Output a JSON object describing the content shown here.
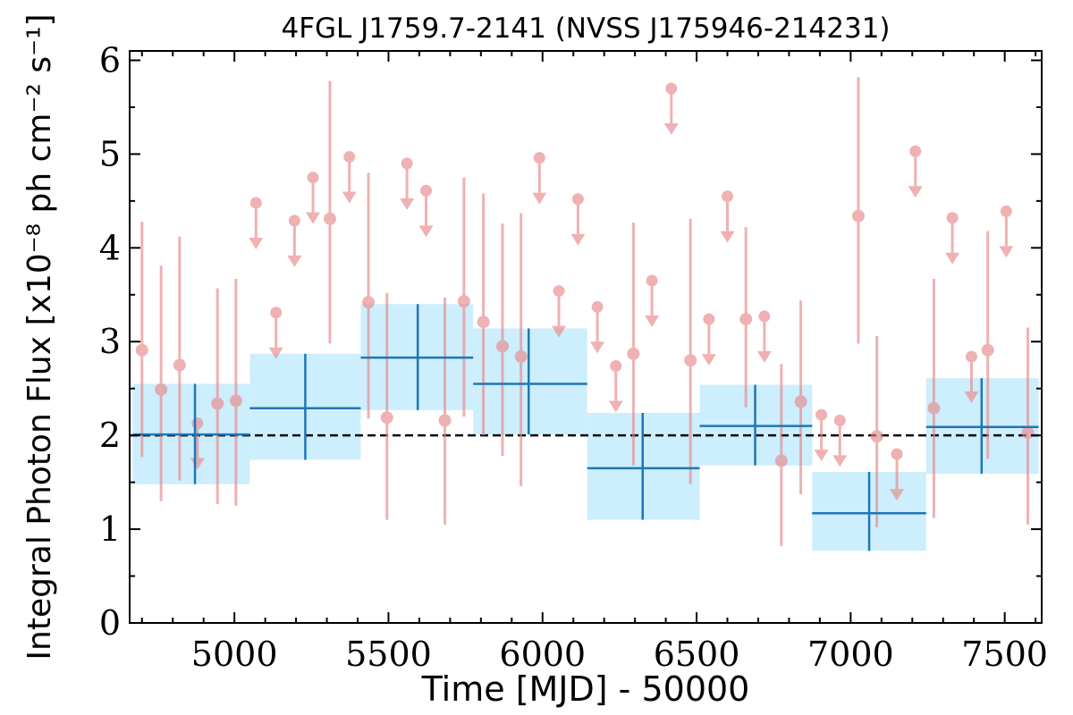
{
  "chart_data": {
    "type": "scatter",
    "title": "4FGL J1759.7-2141 (NVSS J175946-214231)",
    "xlabel": "Time [MJD] - 50000",
    "ylabel": "Integral Photon Flux [x10⁻⁸ ph cm⁻² s⁻¹]",
    "xlim": [
      4660,
      7620
    ],
    "ylim": [
      0,
      6.1
    ],
    "xticks": [
      5000,
      5500,
      6000,
      6500,
      7000,
      7500
    ],
    "yticks": [
      0,
      1,
      2,
      3,
      4,
      5,
      6
    ],
    "grid": false,
    "reference_line": {
      "y": 2.0,
      "style": "dashed",
      "color": "#000000"
    },
    "colors": {
      "short_bin": "#e8888a",
      "long_bin_line": "#1f77b4",
      "long_bin_band": "#cdeefc"
    },
    "short_bins": {
      "name": "",
      "detections": [
        {
          "x": 4700,
          "y": 2.91,
          "ylow": 1.77,
          "yhigh": 4.28
        },
        {
          "x": 4762,
          "y": 2.49,
          "ylow": 1.3,
          "yhigh": 3.81
        },
        {
          "x": 4822,
          "y": 2.75,
          "ylow": 1.52,
          "yhigh": 4.12
        },
        {
          "x": 4945,
          "y": 2.34,
          "ylow": 1.27,
          "yhigh": 3.57
        },
        {
          "x": 5005,
          "y": 2.37,
          "ylow": 1.25,
          "yhigh": 3.67
        },
        {
          "x": 5310,
          "y": 4.31,
          "ylow": 2.98,
          "yhigh": 5.78
        },
        {
          "x": 5435,
          "y": 3.42,
          "ylow": 2.18,
          "yhigh": 4.8
        },
        {
          "x": 5495,
          "y": 2.19,
          "ylow": 1.1,
          "yhigh": 3.52
        },
        {
          "x": 5683,
          "y": 2.16,
          "ylow": 1.05,
          "yhigh": 3.47
        },
        {
          "x": 5745,
          "y": 3.43,
          "ylow": 2.2,
          "yhigh": 4.75
        },
        {
          "x": 5808,
          "y": 3.21,
          "ylow": 2.0,
          "yhigh": 4.58
        },
        {
          "x": 5870,
          "y": 2.95,
          "ylow": 1.78,
          "yhigh": 4.26
        },
        {
          "x": 5930,
          "y": 2.84,
          "ylow": 1.46,
          "yhigh": 4.37
        },
        {
          "x": 6295,
          "y": 2.87,
          "ylow": 1.68,
          "yhigh": 4.27
        },
        {
          "x": 6480,
          "y": 2.8,
          "ylow": 1.48,
          "yhigh": 4.31
        },
        {
          "x": 6660,
          "y": 3.24,
          "ylow": 2.3,
          "yhigh": 4.22
        },
        {
          "x": 6775,
          "y": 1.73,
          "ylow": 0.82,
          "yhigh": 2.76
        },
        {
          "x": 6838,
          "y": 2.36,
          "ylow": 1.37,
          "yhigh": 3.44
        },
        {
          "x": 7025,
          "y": 4.34,
          "ylow": 2.98,
          "yhigh": 5.82
        },
        {
          "x": 7085,
          "y": 1.99,
          "ylow": 1.02,
          "yhigh": 3.06
        },
        {
          "x": 7270,
          "y": 2.29,
          "ylow": 1.12,
          "yhigh": 3.67
        },
        {
          "x": 7445,
          "y": 2.91,
          "ylow": 1.75,
          "yhigh": 4.18
        },
        {
          "x": 7575,
          "y": 2.03,
          "ylow": 1.05,
          "yhigh": 3.15
        }
      ],
      "upper_limits": [
        {
          "x": 4880,
          "y": 2.13
        },
        {
          "x": 5070,
          "y": 4.48
        },
        {
          "x": 5135,
          "y": 3.31
        },
        {
          "x": 5195,
          "y": 4.29
        },
        {
          "x": 5255,
          "y": 4.75
        },
        {
          "x": 5373,
          "y": 4.97
        },
        {
          "x": 5560,
          "y": 4.9
        },
        {
          "x": 5622,
          "y": 4.61
        },
        {
          "x": 5990,
          "y": 4.96
        },
        {
          "x": 6053,
          "y": 3.54
        },
        {
          "x": 6115,
          "y": 4.52
        },
        {
          "x": 6178,
          "y": 3.37
        },
        {
          "x": 6238,
          "y": 2.74
        },
        {
          "x": 6355,
          "y": 3.65
        },
        {
          "x": 6418,
          "y": 5.7
        },
        {
          "x": 6540,
          "y": 3.24
        },
        {
          "x": 6600,
          "y": 4.55
        },
        {
          "x": 6720,
          "y": 3.27
        },
        {
          "x": 6905,
          "y": 2.22
        },
        {
          "x": 6965,
          "y": 2.16
        },
        {
          "x": 7150,
          "y": 1.8
        },
        {
          "x": 7210,
          "y": 5.03
        },
        {
          "x": 7330,
          "y": 4.32
        },
        {
          "x": 7392,
          "y": 2.84
        },
        {
          "x": 7505,
          "y": 4.39
        }
      ]
    },
    "long_bins": {
      "name": "",
      "bins": [
        {
          "xmin": 4670,
          "xmax": 5050,
          "x": 4872,
          "y": 2.01,
          "ylow": 1.48,
          "yhigh": 2.55
        },
        {
          "xmin": 5050,
          "xmax": 5410,
          "x": 5230,
          "y": 2.29,
          "ylow": 1.74,
          "yhigh": 2.87
        },
        {
          "xmin": 5410,
          "xmax": 5775,
          "x": 5595,
          "y": 2.83,
          "ylow": 2.27,
          "yhigh": 3.4
        },
        {
          "xmin": 5775,
          "xmax": 6145,
          "x": 5955,
          "y": 2.55,
          "ylow": 2.01,
          "yhigh": 3.14
        },
        {
          "xmin": 6145,
          "xmax": 6510,
          "x": 6325,
          "y": 1.65,
          "ylow": 1.1,
          "yhigh": 2.24
        },
        {
          "xmin": 6510,
          "xmax": 6875,
          "x": 6690,
          "y": 2.1,
          "ylow": 1.68,
          "yhigh": 2.54
        },
        {
          "xmin": 6875,
          "xmax": 7245,
          "x": 7060,
          "y": 1.17,
          "ylow": 0.77,
          "yhigh": 1.61
        },
        {
          "xmin": 7245,
          "xmax": 7610,
          "x": 7425,
          "y": 2.09,
          "ylow": 1.59,
          "yhigh": 2.61
        }
      ]
    }
  }
}
